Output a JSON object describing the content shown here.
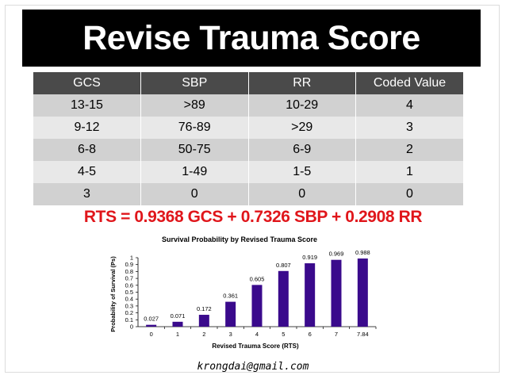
{
  "slide": {
    "title": "Revise Trauma Score",
    "formula": "RTS = 0.9368 GCS + 0.7326 SBP + 0.2908 RR",
    "footer_email": "krongdai@gmail.com"
  },
  "table": {
    "headers": [
      "GCS",
      "SBP",
      "RR",
      "Coded Value"
    ],
    "rows": [
      [
        "13-15",
        ">89",
        "10-29",
        "4"
      ],
      [
        "9-12",
        "76-89",
        ">29",
        "3"
      ],
      [
        "6-8",
        "50-75",
        "6-9",
        "2"
      ],
      [
        "4-5",
        "1-49",
        "1-5",
        "1"
      ],
      [
        "3",
        "0",
        "0",
        "0"
      ]
    ]
  },
  "colors": {
    "title_bg": "#000000",
    "header_bg": "#4a4a4a",
    "row_dark": "#d1d1d1",
    "row_light": "#e8e8e8",
    "formula": "#e0161b",
    "bar_fill": "#3a0a8c"
  },
  "chart_data": {
    "type": "bar",
    "title": "Survival Probability by Revised Trauma Score",
    "xlabel": "Revised Trauma Score (RTS)",
    "ylabel": "Probability of Survival (Ps)",
    "categories": [
      "0",
      "1",
      "2",
      "3",
      "4",
      "5",
      "6",
      "7",
      "7.84"
    ],
    "values": [
      0.027,
      0.071,
      0.172,
      0.361,
      0.605,
      0.807,
      0.919,
      0.969,
      0.988
    ],
    "data_labels": [
      "0.027",
      "0.071",
      "0.172",
      "0.361",
      "0.605",
      "0.807",
      "0.919",
      "0.969",
      "0.988"
    ],
    "yticks": [
      "0",
      "0.1",
      "0.2",
      "0.3",
      "0.4",
      "0.5",
      "0.6",
      "0.7",
      "0.8",
      "0.9",
      "1"
    ],
    "ylim": [
      0,
      1
    ],
    "grid": false,
    "legend": "none"
  }
}
